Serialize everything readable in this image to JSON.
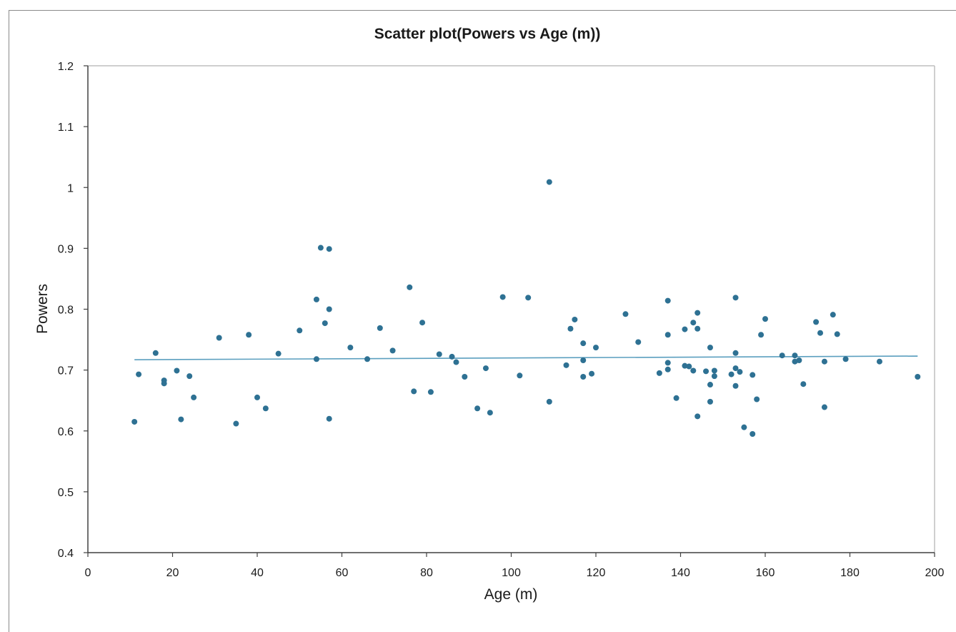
{
  "chart_data": {
    "type": "scatter",
    "title": "Scatter plot(Powers vs Age (m))",
    "xlabel": "Age (m)",
    "ylabel": "Powers",
    "xlim": [
      0,
      200
    ],
    "ylim": [
      0.4,
      1.2
    ],
    "xticks": [
      "0",
      "20",
      "40",
      "60",
      "80",
      "100",
      "120",
      "140",
      "160",
      "180",
      "200"
    ],
    "yticks": [
      "0.4",
      "0.5",
      "0.6",
      "0.7",
      "0.8",
      "0.9",
      "1",
      "1.1",
      "1.2"
    ],
    "grid": false,
    "legend": "none",
    "marker_color": "#2e7193",
    "trendline": {
      "color": "#5b9fbf",
      "x": [
        11,
        196
      ],
      "y": [
        0.717,
        0.723
      ]
    },
    "points": [
      [
        11,
        0.615
      ],
      [
        12,
        0.693
      ],
      [
        16,
        0.728
      ],
      [
        18,
        0.683
      ],
      [
        18,
        0.678
      ],
      [
        21,
        0.699
      ],
      [
        22,
        0.619
      ],
      [
        24,
        0.69
      ],
      [
        25,
        0.655
      ],
      [
        31,
        0.753
      ],
      [
        35,
        0.612
      ],
      [
        38,
        0.758
      ],
      [
        40,
        0.655
      ],
      [
        42,
        0.637
      ],
      [
        45,
        0.727
      ],
      [
        50,
        0.765
      ],
      [
        54,
        0.816
      ],
      [
        54,
        0.718
      ],
      [
        55,
        0.901
      ],
      [
        56,
        0.777
      ],
      [
        57,
        0.899
      ],
      [
        57,
        0.8
      ],
      [
        57,
        0.62
      ],
      [
        62,
        0.737
      ],
      [
        66,
        0.718
      ],
      [
        69,
        0.769
      ],
      [
        72,
        0.732
      ],
      [
        76,
        0.836
      ],
      [
        77,
        0.665
      ],
      [
        79,
        0.778
      ],
      [
        81,
        0.664
      ],
      [
        83,
        0.726
      ],
      [
        86,
        0.722
      ],
      [
        87,
        0.713
      ],
      [
        89,
        0.689
      ],
      [
        92,
        0.637
      ],
      [
        94,
        0.703
      ],
      [
        95,
        0.63
      ],
      [
        98,
        0.82
      ],
      [
        102,
        0.691
      ],
      [
        104,
        0.819
      ],
      [
        109,
        1.009
      ],
      [
        109,
        0.648
      ],
      [
        113,
        0.708
      ],
      [
        114,
        0.768
      ],
      [
        115,
        0.783
      ],
      [
        117,
        0.744
      ],
      [
        117,
        0.716
      ],
      [
        117,
        0.689
      ],
      [
        119,
        0.694
      ],
      [
        120,
        0.737
      ],
      [
        127,
        0.792
      ],
      [
        130,
        0.746
      ],
      [
        135,
        0.695
      ],
      [
        137,
        0.814
      ],
      [
        137,
        0.758
      ],
      [
        137,
        0.712
      ],
      [
        137,
        0.701
      ],
      [
        139,
        0.654
      ],
      [
        141,
        0.767
      ],
      [
        141,
        0.707
      ],
      [
        142,
        0.706
      ],
      [
        143,
        0.778
      ],
      [
        143,
        0.699
      ],
      [
        144,
        0.794
      ],
      [
        144,
        0.768
      ],
      [
        144,
        0.624
      ],
      [
        146,
        0.698
      ],
      [
        147,
        0.737
      ],
      [
        147,
        0.676
      ],
      [
        147,
        0.648
      ],
      [
        148,
        0.699
      ],
      [
        148,
        0.69
      ],
      [
        152,
        0.693
      ],
      [
        153,
        0.819
      ],
      [
        153,
        0.728
      ],
      [
        153,
        0.703
      ],
      [
        153,
        0.674
      ],
      [
        154,
        0.697
      ],
      [
        155,
        0.606
      ],
      [
        157,
        0.692
      ],
      [
        157,
        0.595
      ],
      [
        158,
        0.652
      ],
      [
        159,
        0.758
      ],
      [
        160,
        0.784
      ],
      [
        164,
        0.724
      ],
      [
        167,
        0.724
      ],
      [
        167,
        0.714
      ],
      [
        168,
        0.716
      ],
      [
        169,
        0.677
      ],
      [
        172,
        0.779
      ],
      [
        173,
        0.761
      ],
      [
        174,
        0.714
      ],
      [
        174,
        0.639
      ],
      [
        176,
        0.791
      ],
      [
        177,
        0.759
      ],
      [
        179,
        0.718
      ],
      [
        187,
        0.714
      ],
      [
        196,
        0.689
      ]
    ]
  }
}
